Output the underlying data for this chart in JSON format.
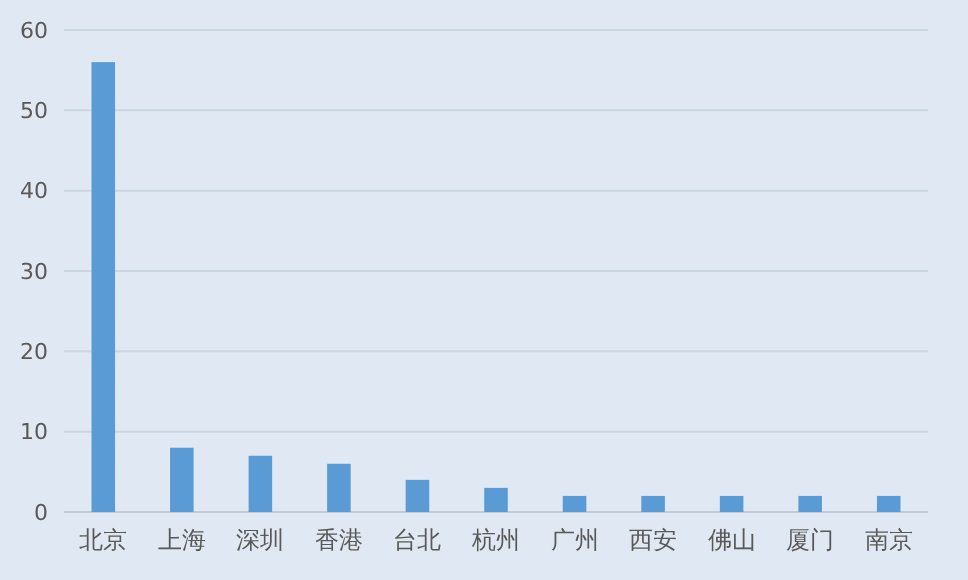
{
  "chart_data": {
    "type": "bar",
    "categories": [
      "北京",
      "上海",
      "深圳",
      "香港",
      "台北",
      "杭州",
      "广州",
      "西安",
      "佛山",
      "厦门",
      "南京"
    ],
    "values": [
      56,
      8,
      7,
      6,
      4,
      3,
      2,
      2,
      2,
      2,
      2
    ],
    "color": "#5b9bd5",
    "ylim": [
      0,
      60
    ],
    "yticks": [
      0,
      10,
      20,
      30,
      40,
      50,
      60
    ],
    "grid": "y"
  }
}
